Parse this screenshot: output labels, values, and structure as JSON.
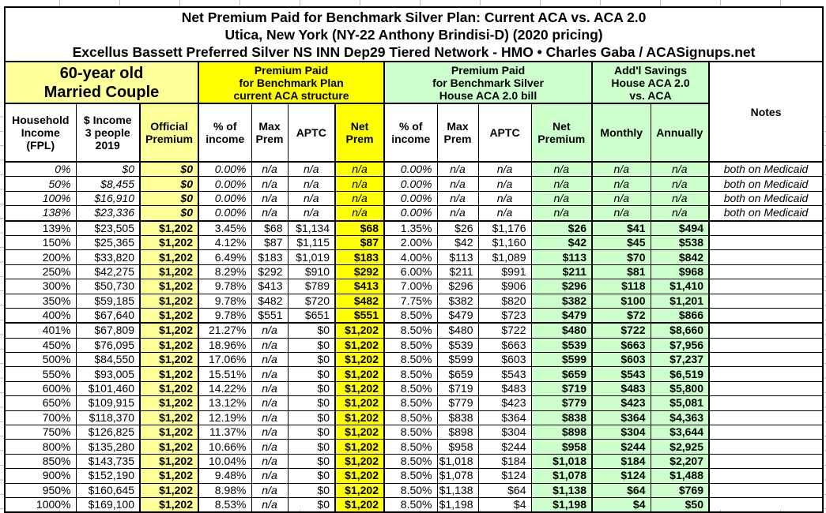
{
  "title": {
    "line1": "Net Premium Paid for Benchmark Silver Plan: Current ACA vs. ACA 2.0",
    "line2": "Utica, New York (NY-22 Anthony Brindisi-D) (2020 pricing)",
    "line3": "Excellus Bassett Preferred Silver NS INN Dep29 Tiered Network - HMO • Charles Gaba / ACASignups.net"
  },
  "groups": {
    "demographic": "60-year old\nMarried Couple",
    "current_aca": "Premium Paid\nfor Benchmark Plan\ncurrent ACA structure",
    "aca2": "Premium Paid\nfor Benchmark Silver\nHouse ACA 2.0 bill",
    "savings": "Add'l Savings\nHouse ACA 2.0\nvs. ACA",
    "notes": "Notes"
  },
  "columns": [
    "Household\nIncome\n(FPL)",
    "$ Income\n3 people\n2019",
    "Official\nPremium",
    "% of\nincome",
    "Max\nPrem",
    "APTC",
    "Net\nPrem",
    "% of\nincome",
    "Max\nPrem",
    "APTC",
    "Net\nPremium",
    "Monthly",
    "Annually"
  ],
  "colors": {
    "light_yellow": "#FFFF99",
    "bright_yellow": "#FFFF00",
    "pale_green": "#CCFFCC",
    "border": "#000000"
  },
  "table": {
    "medicaid_rows": [
      0,
      1,
      2,
      3
    ],
    "thick_after_rows": [
      3,
      10
    ],
    "rows": [
      [
        "0%",
        "$0",
        "$0",
        "0.00%",
        "n/a",
        "n/a",
        "n/a",
        "0.00%",
        "n/a",
        "n/a",
        "n/a",
        "n/a",
        "n/a",
        "both on Medicaid"
      ],
      [
        "50%",
        "$8,455",
        "$0",
        "0.00%",
        "n/a",
        "n/a",
        "n/a",
        "0.00%",
        "n/a",
        "n/a",
        "n/a",
        "n/a",
        "n/a",
        "both on Medicaid"
      ],
      [
        "100%",
        "$16,910",
        "$0",
        "0.00%",
        "n/a",
        "n/a",
        "n/a",
        "0.00%",
        "n/a",
        "n/a",
        "n/a",
        "n/a",
        "n/a",
        "both on Medicaid"
      ],
      [
        "138%",
        "$23,336",
        "$0",
        "0.00%",
        "n/a",
        "n/a",
        "n/a",
        "0.00%",
        "n/a",
        "n/a",
        "n/a",
        "n/a",
        "n/a",
        "both on Medicaid"
      ],
      [
        "139%",
        "$23,505",
        "$1,202",
        "3.45%",
        "$68",
        "$1,134",
        "$68",
        "1.35%",
        "$26",
        "$1,176",
        "$26",
        "$41",
        "$494",
        ""
      ],
      [
        "150%",
        "$25,365",
        "$1,202",
        "4.12%",
        "$87",
        "$1,115",
        "$87",
        "2.00%",
        "$42",
        "$1,160",
        "$42",
        "$45",
        "$538",
        ""
      ],
      [
        "200%",
        "$33,820",
        "$1,202",
        "6.49%",
        "$183",
        "$1,019",
        "$183",
        "4.00%",
        "$113",
        "$1,089",
        "$113",
        "$70",
        "$842",
        ""
      ],
      [
        "250%",
        "$42,275",
        "$1,202",
        "8.29%",
        "$292",
        "$910",
        "$292",
        "6.00%",
        "$211",
        "$991",
        "$211",
        "$81",
        "$968",
        ""
      ],
      [
        "300%",
        "$50,730",
        "$1,202",
        "9.78%",
        "$413",
        "$789",
        "$413",
        "7.00%",
        "$296",
        "$906",
        "$296",
        "$118",
        "$1,410",
        ""
      ],
      [
        "350%",
        "$59,185",
        "$1,202",
        "9.78%",
        "$482",
        "$720",
        "$482",
        "7.75%",
        "$382",
        "$820",
        "$382",
        "$100",
        "$1,201",
        ""
      ],
      [
        "400%",
        "$67,640",
        "$1,202",
        "9.78%",
        "$551",
        "$651",
        "$551",
        "8.50%",
        "$479",
        "$723",
        "$479",
        "$72",
        "$866",
        ""
      ],
      [
        "401%",
        "$67,809",
        "$1,202",
        "21.27%",
        "n/a",
        "$0",
        "$1,202",
        "8.50%",
        "$480",
        "$722",
        "$480",
        "$722",
        "$8,660",
        ""
      ],
      [
        "450%",
        "$76,095",
        "$1,202",
        "18.96%",
        "n/a",
        "$0",
        "$1,202",
        "8.50%",
        "$539",
        "$663",
        "$539",
        "$663",
        "$7,956",
        ""
      ],
      [
        "500%",
        "$84,550",
        "$1,202",
        "17.06%",
        "n/a",
        "$0",
        "$1,202",
        "8.50%",
        "$599",
        "$603",
        "$599",
        "$603",
        "$7,237",
        ""
      ],
      [
        "550%",
        "$93,005",
        "$1,202",
        "15.51%",
        "n/a",
        "$0",
        "$1,202",
        "8.50%",
        "$659",
        "$543",
        "$659",
        "$543",
        "$6,519",
        ""
      ],
      [
        "600%",
        "$101,460",
        "$1,202",
        "14.22%",
        "n/a",
        "$0",
        "$1,202",
        "8.50%",
        "$719",
        "$483",
        "$719",
        "$483",
        "$5,800",
        ""
      ],
      [
        "650%",
        "$109,915",
        "$1,202",
        "13.12%",
        "n/a",
        "$0",
        "$1,202",
        "8.50%",
        "$779",
        "$423",
        "$779",
        "$423",
        "$5,081",
        ""
      ],
      [
        "700%",
        "$118,370",
        "$1,202",
        "12.19%",
        "n/a",
        "$0",
        "$1,202",
        "8.50%",
        "$838",
        "$364",
        "$838",
        "$364",
        "$4,363",
        ""
      ],
      [
        "750%",
        "$126,825",
        "$1,202",
        "11.37%",
        "n/a",
        "$0",
        "$1,202",
        "8.50%",
        "$898",
        "$304",
        "$898",
        "$304",
        "$3,644",
        ""
      ],
      [
        "800%",
        "$135,280",
        "$1,202",
        "10.66%",
        "n/a",
        "$0",
        "$1,202",
        "8.50%",
        "$958",
        "$244",
        "$958",
        "$244",
        "$2,925",
        ""
      ],
      [
        "850%",
        "$143,735",
        "$1,202",
        "10.04%",
        "n/a",
        "$0",
        "$1,202",
        "8.50%",
        "$1,018",
        "$184",
        "$1,018",
        "$184",
        "$2,207",
        ""
      ],
      [
        "900%",
        "$152,190",
        "$1,202",
        "9.48%",
        "n/a",
        "$0",
        "$1,202",
        "8.50%",
        "$1,078",
        "$124",
        "$1,078",
        "$124",
        "$1,488",
        ""
      ],
      [
        "950%",
        "$160,645",
        "$1,202",
        "8.98%",
        "n/a",
        "$0",
        "$1,202",
        "8.50%",
        "$1,138",
        "$64",
        "$1,138",
        "$64",
        "$769",
        ""
      ],
      [
        "1000%",
        "$169,100",
        "$1,202",
        "8.53%",
        "n/a",
        "$0",
        "$1,202",
        "8.50%",
        "$1,198",
        "$4",
        "$1,198",
        "$4",
        "$50",
        ""
      ]
    ]
  }
}
